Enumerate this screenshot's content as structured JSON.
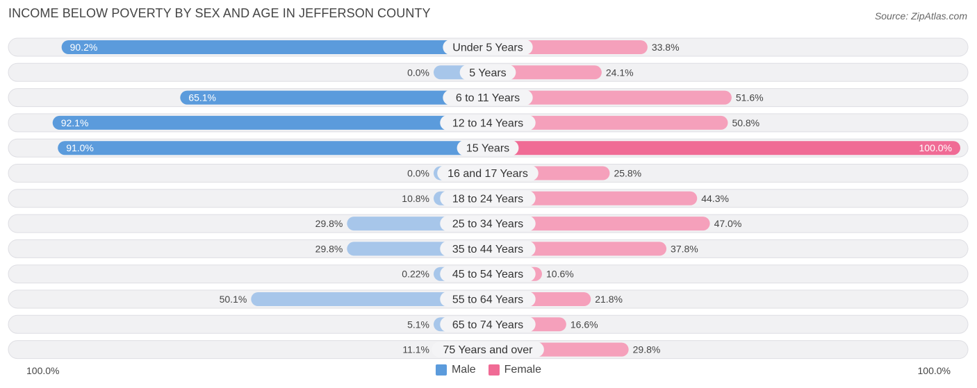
{
  "header": {
    "title": "INCOME BELOW POVERTY BY SEX AND AGE IN JEFFERSON COUNTY",
    "source": "Source: ZipAtlas.com"
  },
  "colors": {
    "male_strong": "#5b9bdc",
    "male_light": "#a7c6ea",
    "female_strong": "#f06b95",
    "female_light": "#f5a0bb",
    "row_bg": "#f1f1f3",
    "row_border": "#dedee3"
  },
  "chart_data": {
    "type": "bar",
    "orientation": "horizontal-diverging",
    "title": "INCOME BELOW POVERTY BY SEX AND AGE IN JEFFERSON COUNTY",
    "categories": [
      "Under 5 Years",
      "5 Years",
      "6 to 11 Years",
      "12 to 14 Years",
      "15 Years",
      "16 and 17 Years",
      "18 to 24 Years",
      "25 to 34 Years",
      "35 to 44 Years",
      "45 to 54 Years",
      "55 to 64 Years",
      "65 to 74 Years",
      "75 Years and over"
    ],
    "series": [
      {
        "name": "Male",
        "values": [
          90.2,
          0.0,
          65.1,
          92.1,
          91.0,
          0.0,
          10.8,
          29.8,
          29.8,
          0.22,
          50.1,
          5.1,
          11.1
        ],
        "labels": [
          "90.2%",
          "0.0%",
          "65.1%",
          "92.1%",
          "91.0%",
          "0.0%",
          "10.8%",
          "29.8%",
          "29.8%",
          "0.22%",
          "50.1%",
          "5.1%",
          "11.1%"
        ]
      },
      {
        "name": "Female",
        "values": [
          33.8,
          24.1,
          51.6,
          50.8,
          100.0,
          25.8,
          44.3,
          47.0,
          37.8,
          10.6,
          21.8,
          16.6,
          29.8
        ],
        "labels": [
          "33.8%",
          "24.1%",
          "51.6%",
          "50.8%",
          "100.0%",
          "25.8%",
          "44.3%",
          "47.0%",
          "37.8%",
          "10.6%",
          "21.8%",
          "16.6%",
          "29.8%"
        ]
      }
    ],
    "xlim": [
      -100,
      100
    ],
    "axis_left_label": "100.0%",
    "axis_right_label": "100.0%",
    "legend": [
      "Male",
      "Female"
    ],
    "legend_position": "bottom-center"
  }
}
